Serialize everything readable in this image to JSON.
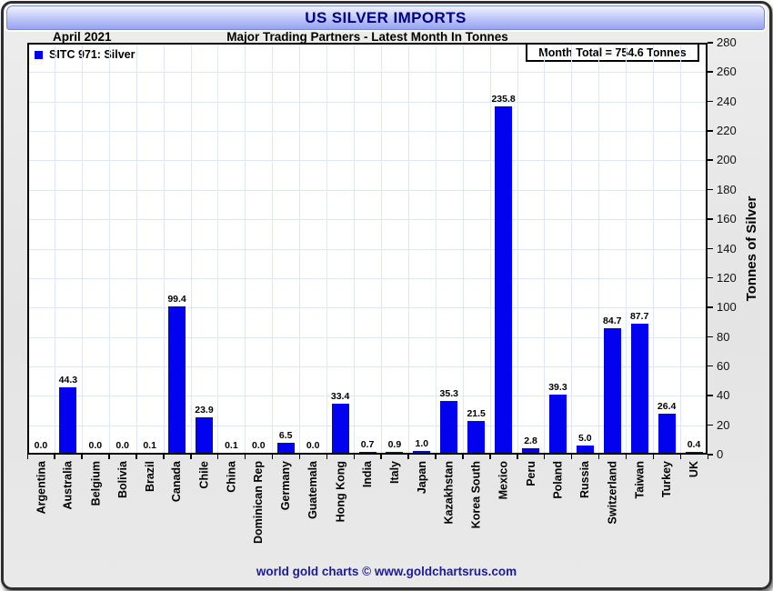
{
  "window": {
    "title": "US SILVER IMPORTS"
  },
  "header": {
    "title": "US SILVER IMPORTS",
    "period": "April 2021",
    "subtitle": "Major Trading Partners - Latest Month In Tonnes"
  },
  "legend": {
    "label": "SITC 971: Silver",
    "swatch_icon": "blue-square-icon"
  },
  "annotation": {
    "month_total": "Month Total = 754.6 Tonnes"
  },
  "footer": {
    "credit": "world gold charts © www.goldchartsrus.com"
  },
  "colors": {
    "bar": "#0202ee",
    "title_navy": "#000082",
    "footer_navy": "#1c1c94",
    "gridline": "#dce8f6",
    "header_gradient_bottom": "#96a2f0",
    "background_gray": "#e4e4e4"
  },
  "chart_data": {
    "type": "bar",
    "title": "US SILVER IMPORTS",
    "subtitle": "Major Trading Partners - Latest Month In Tonnes",
    "period": "April 2021",
    "series_name": "SITC 971: Silver",
    "month_total_tonnes": 754.6,
    "ylabel": "Tonnes of Silver",
    "ylim": [
      0,
      280
    ],
    "ytick_step": 20,
    "grid": true,
    "legend_position": "top-left",
    "value_labels": true,
    "categories": [
      "Argentina",
      "Australia",
      "Belgium",
      "Bolivia",
      "Brazil",
      "Canada",
      "Chile",
      "China",
      "Dominican Rep",
      "Germany",
      "Guatemala",
      "Hong Kong",
      "India",
      "Italy",
      "Japan",
      "Kazakhstan",
      "Korea South",
      "Mexico",
      "Peru",
      "Poland",
      "Russia",
      "Switzerland",
      "Taiwan",
      "Turkey",
      "UK"
    ],
    "values": [
      0.0,
      44.3,
      0.0,
      0.0,
      0.1,
      99.4,
      23.9,
      0.1,
      0.0,
      6.5,
      0.0,
      33.4,
      0.7,
      0.9,
      1.0,
      35.3,
      21.5,
      235.8,
      2.8,
      39.3,
      5.0,
      84.7,
      87.7,
      26.4,
      0.4
    ]
  }
}
